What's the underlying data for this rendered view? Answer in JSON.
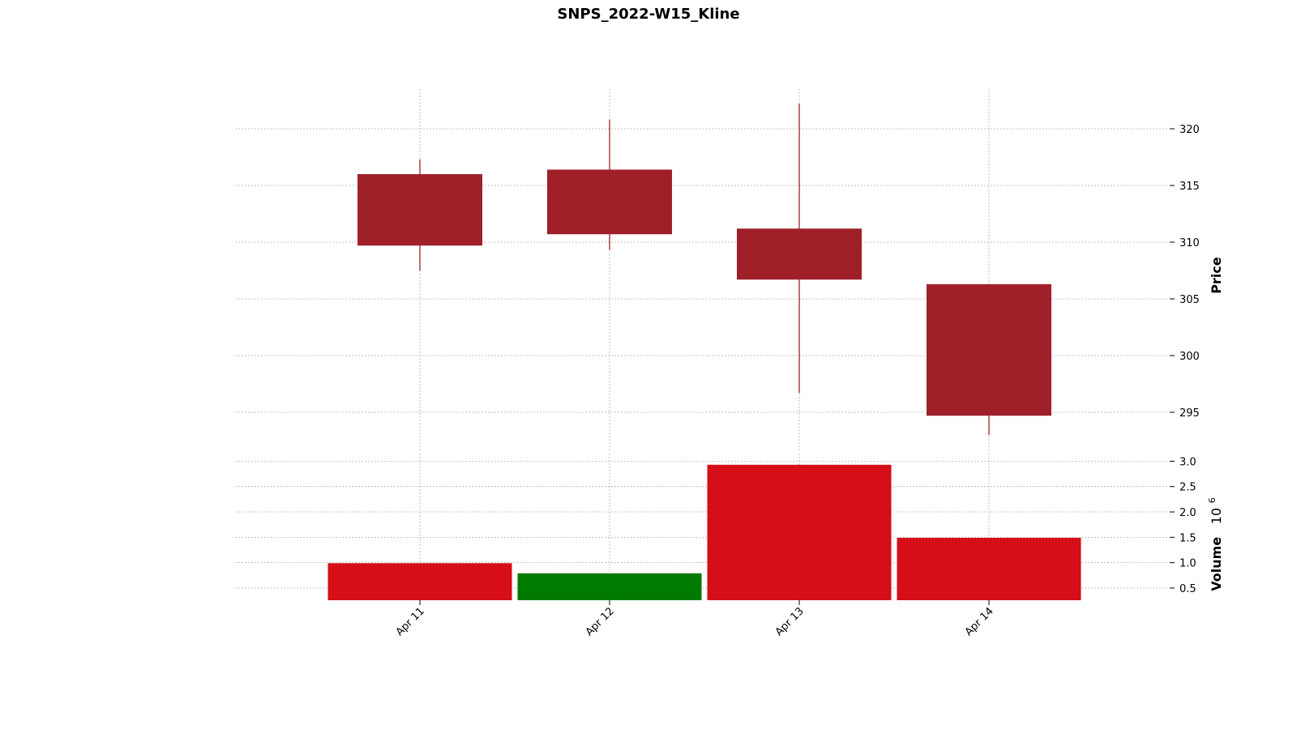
{
  "chart_data": {
    "type": "candlestick",
    "title": "SNPS_2022-W15_Kline",
    "categories": [
      "Apr 11",
      "Apr 12",
      "Apr 13",
      "Apr 14"
    ],
    "price": {
      "ylabel": "Price",
      "ylim": [
        291.5,
        323.5
      ],
      "ticks": [
        295,
        300,
        305,
        310,
        315,
        320
      ],
      "tick_labels": [
        "295",
        "300",
        "305",
        "310",
        "315",
        "320"
      ],
      "ohlc": [
        {
          "date": "Apr 11",
          "open": 316.0,
          "high": 317.3,
          "low": 307.5,
          "close": 309.7
        },
        {
          "date": "Apr 12",
          "open": 316.4,
          "high": 320.8,
          "low": 309.3,
          "close": 310.7
        },
        {
          "date": "Apr 13",
          "open": 311.2,
          "high": 322.2,
          "low": 296.7,
          "close": 306.7
        },
        {
          "date": "Apr 14",
          "open": 306.3,
          "high": 306.3,
          "low": 293.0,
          "close": 294.7
        }
      ]
    },
    "volume": {
      "ylabel": "Volume",
      "multiplier_label": "10",
      "multiplier_exponent": "6",
      "ylim": [
        0.26,
        3.15
      ],
      "ticks": [
        0.5,
        1.0,
        1.5,
        2.0,
        2.5,
        3.0
      ],
      "tick_labels": [
        "0.5",
        "1.0",
        "1.5",
        "2.0",
        "2.5",
        "3.0"
      ],
      "values": [
        0.99,
        0.79,
        2.93,
        1.49
      ],
      "directions": [
        "down",
        "up",
        "down",
        "down"
      ]
    },
    "grid": true,
    "colors": {
      "candle_down": "#a0202a",
      "candle_up": "#007a00",
      "volume_down": "#d50e18",
      "volume_up": "#007a00",
      "grid": "#b0b0b0"
    }
  }
}
